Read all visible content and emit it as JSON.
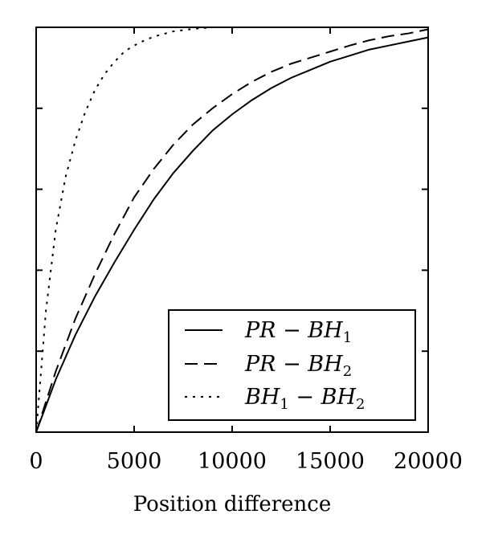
{
  "chart_data": {
    "type": "line",
    "title": "",
    "xlabel": "Position difference",
    "ylabel": "",
    "xlim": [
      0,
      20000
    ],
    "ylim": [
      0,
      1
    ],
    "x_ticks": [
      "0",
      "5000",
      "10000",
      "15000",
      "20000"
    ],
    "y_ticks_labeled": false,
    "grid": false,
    "legend_position": "bottom-right",
    "series": [
      {
        "name": "PR − BH",
        "name_subscript": "1",
        "style": "solid",
        "x": [
          0,
          1000,
          2000,
          3000,
          4000,
          5000,
          6000,
          7000,
          8000,
          9000,
          10000,
          11000,
          12000,
          13000,
          14000,
          15000,
          16000,
          17000,
          18000,
          19000,
          20000
        ],
        "y": [
          0,
          0.13,
          0.24,
          0.335,
          0.42,
          0.5,
          0.575,
          0.64,
          0.695,
          0.745,
          0.785,
          0.82,
          0.85,
          0.875,
          0.895,
          0.915,
          0.93,
          0.945,
          0.955,
          0.965,
          0.975
        ]
      },
      {
        "name": "PR − BH",
        "name_subscript": "2",
        "style": "dashed",
        "x": [
          0,
          1000,
          2000,
          3000,
          4000,
          5000,
          6000,
          7000,
          8000,
          9000,
          10000,
          11000,
          12000,
          13000,
          14000,
          15000,
          16000,
          17000,
          18000,
          19000,
          20000
        ],
        "y": [
          0,
          0.15,
          0.28,
          0.39,
          0.49,
          0.58,
          0.65,
          0.71,
          0.76,
          0.8,
          0.835,
          0.865,
          0.89,
          0.91,
          0.925,
          0.94,
          0.955,
          0.968,
          0.978,
          0.985,
          0.995
        ]
      },
      {
        "name": "BH − BH",
        "name_prefix_subscript": "1",
        "name_subscript": "2",
        "style": "dotted",
        "x": [
          0,
          500,
          1000,
          1500,
          2000,
          2500,
          3000,
          3500,
          4000,
          4500,
          5000,
          5500,
          6000,
          7000,
          8000,
          9000,
          10000,
          12000,
          14000,
          16000
        ],
        "y": [
          0,
          0.3,
          0.5,
          0.63,
          0.72,
          0.79,
          0.845,
          0.885,
          0.915,
          0.94,
          0.955,
          0.967,
          0.977,
          0.99,
          0.996,
          1.0,
          1.0,
          1.0,
          1.0,
          1.0
        ]
      }
    ]
  }
}
